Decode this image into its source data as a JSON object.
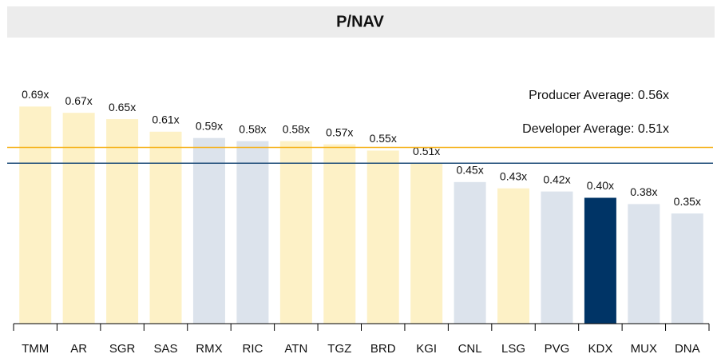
{
  "chart_data": {
    "type": "bar",
    "title": "P/NAV",
    "categories": [
      "TMM",
      "AR",
      "SGR",
      "SAS",
      "RMX",
      "RIC",
      "ATN",
      "TGZ",
      "BRD",
      "KGI",
      "CNL",
      "LSG",
      "PVG",
      "KDX",
      "MUX",
      "DNA"
    ],
    "values": [
      0.69,
      0.67,
      0.65,
      0.61,
      0.59,
      0.58,
      0.58,
      0.57,
      0.55,
      0.51,
      0.45,
      0.43,
      0.42,
      0.4,
      0.38,
      0.35
    ],
    "value_labels": [
      "0.69x",
      "0.67x",
      "0.65x",
      "0.61x",
      "0.59x",
      "0.58x",
      "0.58x",
      "0.57x",
      "0.55x",
      "0.51x",
      "0.45x",
      "0.43x",
      "0.42x",
      "0.40x",
      "0.38x",
      "0.35x"
    ],
    "colors": [
      "#fdf1c6",
      "#fdf1c6",
      "#fdf1c6",
      "#fdf1c6",
      "#dce3ec",
      "#dce3ec",
      "#fdf1c6",
      "#fdf1c6",
      "#fdf1c6",
      "#fdf1c6",
      "#dce3ec",
      "#fdf1c6",
      "#dce3ec",
      "#003466",
      "#dce3ec",
      "#dce3ec"
    ],
    "ylim": [
      0,
      0.8
    ],
    "reference_lines": [
      {
        "label": "Producer Average: 0.56x",
        "value": 0.56,
        "color": "#f6b21b"
      },
      {
        "label": "Developer Average: 0.51x",
        "value": 0.51,
        "color": "#1f4e79"
      }
    ]
  }
}
